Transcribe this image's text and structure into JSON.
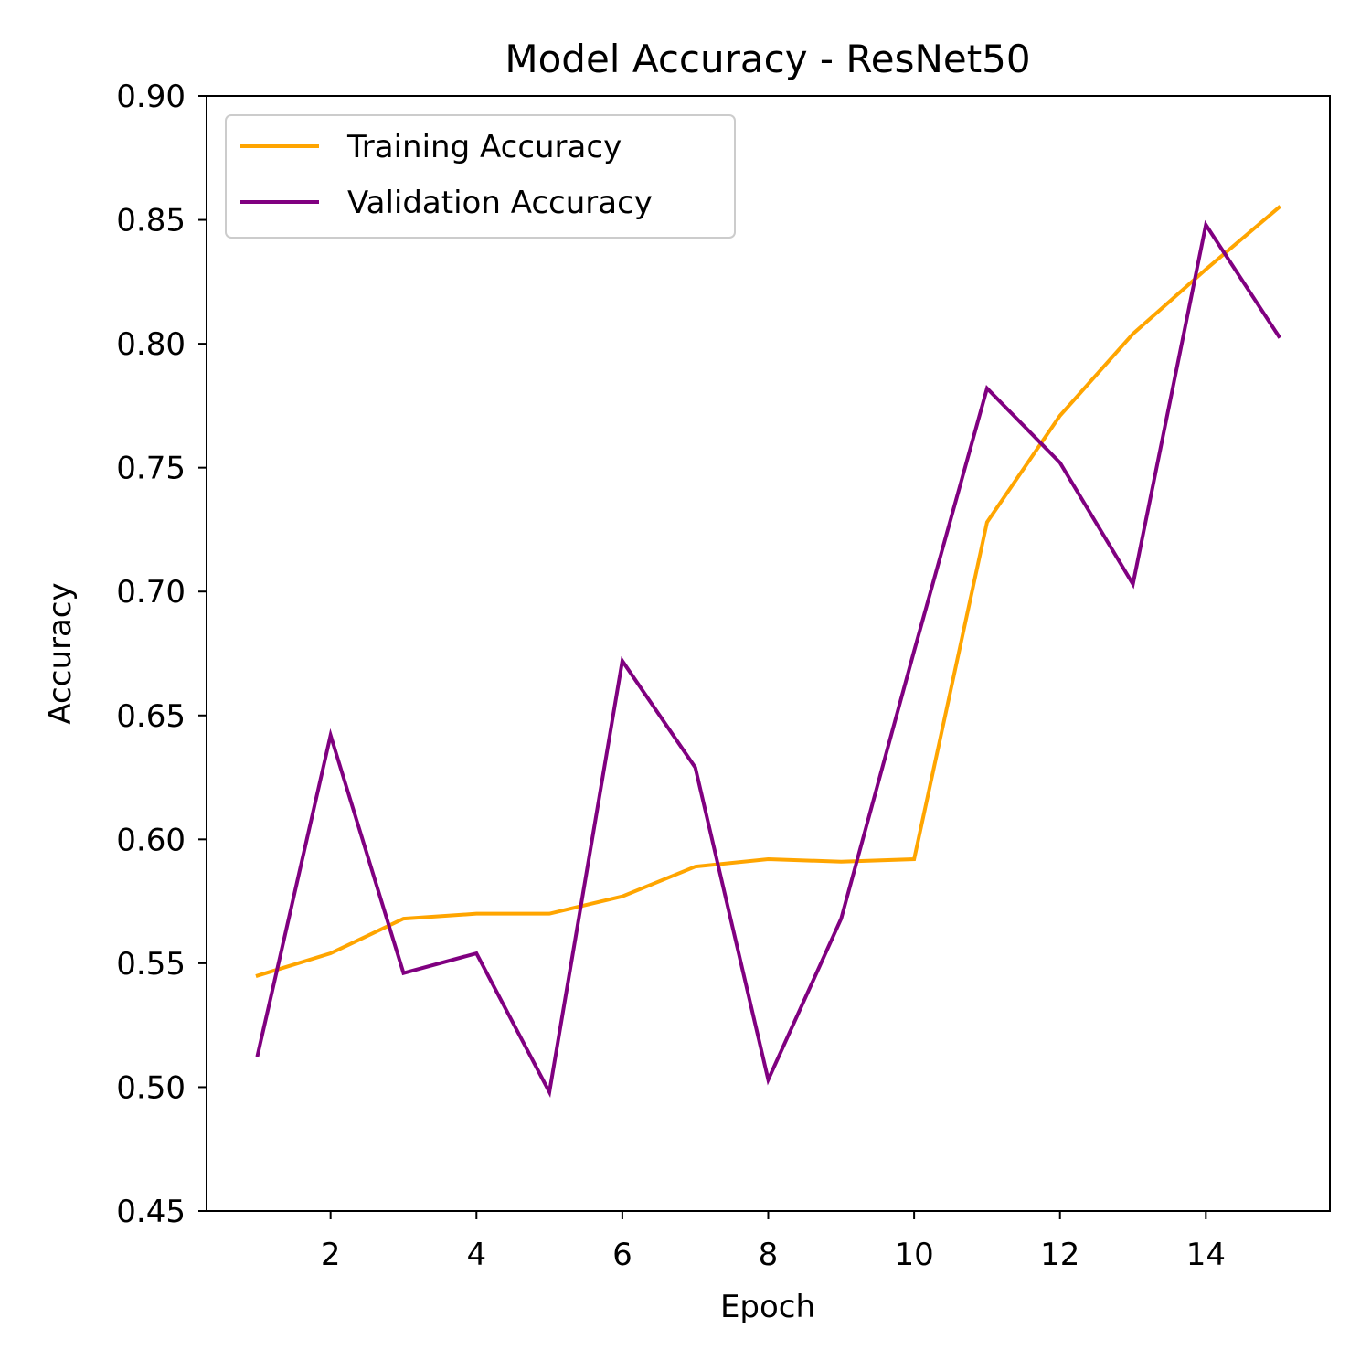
{
  "chart_data": {
    "type": "line",
    "title": "Model Accuracy - ResNet50",
    "xlabel": "Epoch",
    "ylabel": "Accuracy",
    "xlim": [
      0.3,
      15.7
    ],
    "ylim": [
      0.45,
      0.9
    ],
    "x": [
      1,
      2,
      3,
      4,
      5,
      6,
      7,
      8,
      9,
      10,
      11,
      12,
      13,
      14,
      15
    ],
    "xticks": [
      2,
      4,
      6,
      8,
      10,
      12,
      14
    ],
    "xtick_labels": [
      "2",
      "4",
      "6",
      "8",
      "10",
      "12",
      "14"
    ],
    "yticks": [
      0.45,
      0.5,
      0.55,
      0.6,
      0.65,
      0.7,
      0.75,
      0.8,
      0.85,
      0.9
    ],
    "ytick_labels": [
      "0.45",
      "0.50",
      "0.55",
      "0.60",
      "0.65",
      "0.70",
      "0.75",
      "0.80",
      "0.85",
      "0.90"
    ],
    "grid": false,
    "legend_position": "top-left",
    "series": [
      {
        "name": "Training Accuracy",
        "color": "#FFA500",
        "values": [
          0.545,
          0.554,
          0.568,
          0.57,
          0.57,
          0.577,
          0.589,
          0.592,
          0.591,
          0.592,
          0.728,
          0.771,
          0.804,
          0.83,
          0.855
        ]
      },
      {
        "name": "Validation Accuracy",
        "color": "#800080",
        "values": [
          0.513,
          0.642,
          0.546,
          0.554,
          0.498,
          0.672,
          0.629,
          0.503,
          0.568,
          0.676,
          0.782,
          0.752,
          0.703,
          0.848,
          0.803
        ]
      }
    ]
  }
}
